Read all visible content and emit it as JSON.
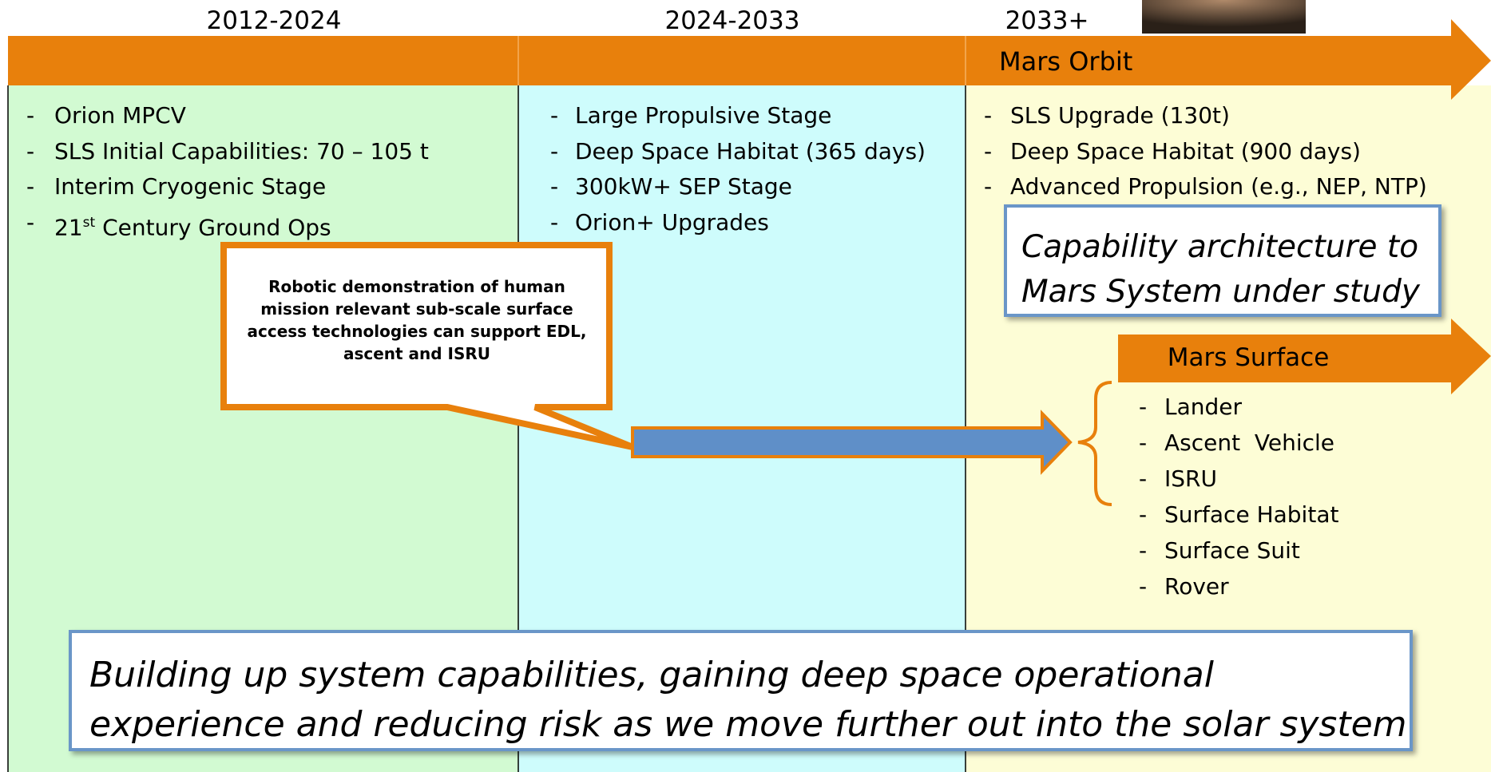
{
  "columns": [
    {
      "period": "2012-2024",
      "items": [
        "Orion MPCV",
        "SLS Initial Capabilities: 70 – 105 t",
        "Interim Cryogenic Stage",
        {
          "prefix": "21",
          "sup": "st",
          "rest": " Century Ground Ops"
        }
      ]
    },
    {
      "period": "2024-2033",
      "items": [
        "Large Propulsive Stage",
        "Deep Space Habitat (365 days)",
        "300kW+ SEP Stage",
        "Orion+ Upgrades"
      ]
    },
    {
      "period": "2033+",
      "items": [
        "SLS Upgrade (130t)",
        "Deep Space Habitat (900 days)",
        "Advanced Propulsion (e.g., NEP, NTP)"
      ]
    }
  ],
  "banner": "Mars Orbit",
  "study_note": "Capability architecture to Mars System under study",
  "callout": "Robotic demonstration of human mission relevant sub-scale surface access technologies can support EDL, ascent and ISRU",
  "surface": {
    "label": "Mars Surface",
    "items": [
      "Lander",
      "Ascent  Vehicle",
      "ISRU",
      "Surface Habitat",
      "Surface Suit",
      "Rover"
    ]
  },
  "summary": "Building up system capabilities, gaining deep space operational experience and reducing risk as we move further out into the solar system"
}
